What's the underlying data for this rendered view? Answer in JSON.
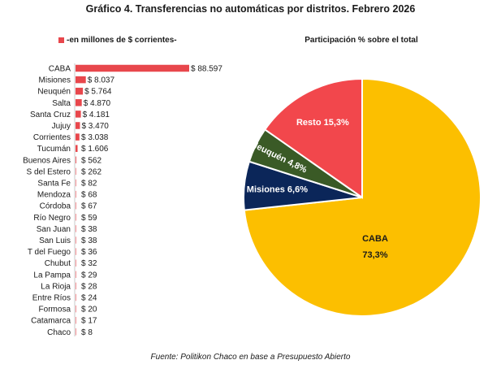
{
  "title": "Gráfico 4. Transferencias no automáticas por distritos. Febrero 2026",
  "source": "Fuente: Politikon Chaco en base a Presupuesto Abierto",
  "chart_data": [
    {
      "type": "bar",
      "orientation": "horizontal",
      "legend": "-en millones de $ corrientes-",
      "categories": [
        "CABA",
        "Misiones",
        "Neuquén",
        "Salta",
        "Santa Cruz",
        "Jujuy",
        "Corrientes",
        "Tucumán",
        "Buenos Aires",
        "S del Estero",
        "Santa Fe",
        "Mendoza",
        "Córdoba",
        "Río Negro",
        "San Juan",
        "San Luis",
        "T del Fuego",
        "Chubut",
        "La Pampa",
        "La Rioja",
        "Entre Ríos",
        "Formosa",
        "Catamarca",
        "Chaco"
      ],
      "values": [
        88597,
        8037,
        5764,
        4870,
        4181,
        3470,
        3038,
        1606,
        562,
        262,
        82,
        68,
        67,
        59,
        38,
        38,
        36,
        32,
        29,
        28,
        24,
        20,
        17,
        8
      ],
      "labels": [
        "$ 88.597",
        "$ 8.037",
        "$ 5.764",
        "$ 4.870",
        "$ 4.181",
        "$ 3.470",
        "$ 3.038",
        "$ 1.606",
        "$ 562",
        "$ 262",
        "$ 82",
        "$ 68",
        "$ 67",
        "$ 59",
        "$ 38",
        "$ 38",
        "$ 36",
        "$ 32",
        "$ 29",
        "$ 28",
        "$ 24",
        "$ 20",
        "$ 17",
        "$ 8"
      ],
      "color": "#e8474c",
      "grid": false
    },
    {
      "type": "pie",
      "title": "Participación % sobre el total",
      "slices": [
        {
          "label": "CABA",
          "value": 73.3,
          "text": "73,3%",
          "color": "#fcbf00"
        },
        {
          "label": "Misiones",
          "value": 6.6,
          "text": "Misiones 6,6%",
          "color": "#0b2659"
        },
        {
          "label": "Neuquén",
          "value": 4.8,
          "text": "Neuquén 4,8%",
          "color": "#3a5a26"
        },
        {
          "label": "Resto",
          "value": 15.3,
          "text": "Resto 15,3%",
          "color": "#f2474c"
        }
      ]
    }
  ]
}
